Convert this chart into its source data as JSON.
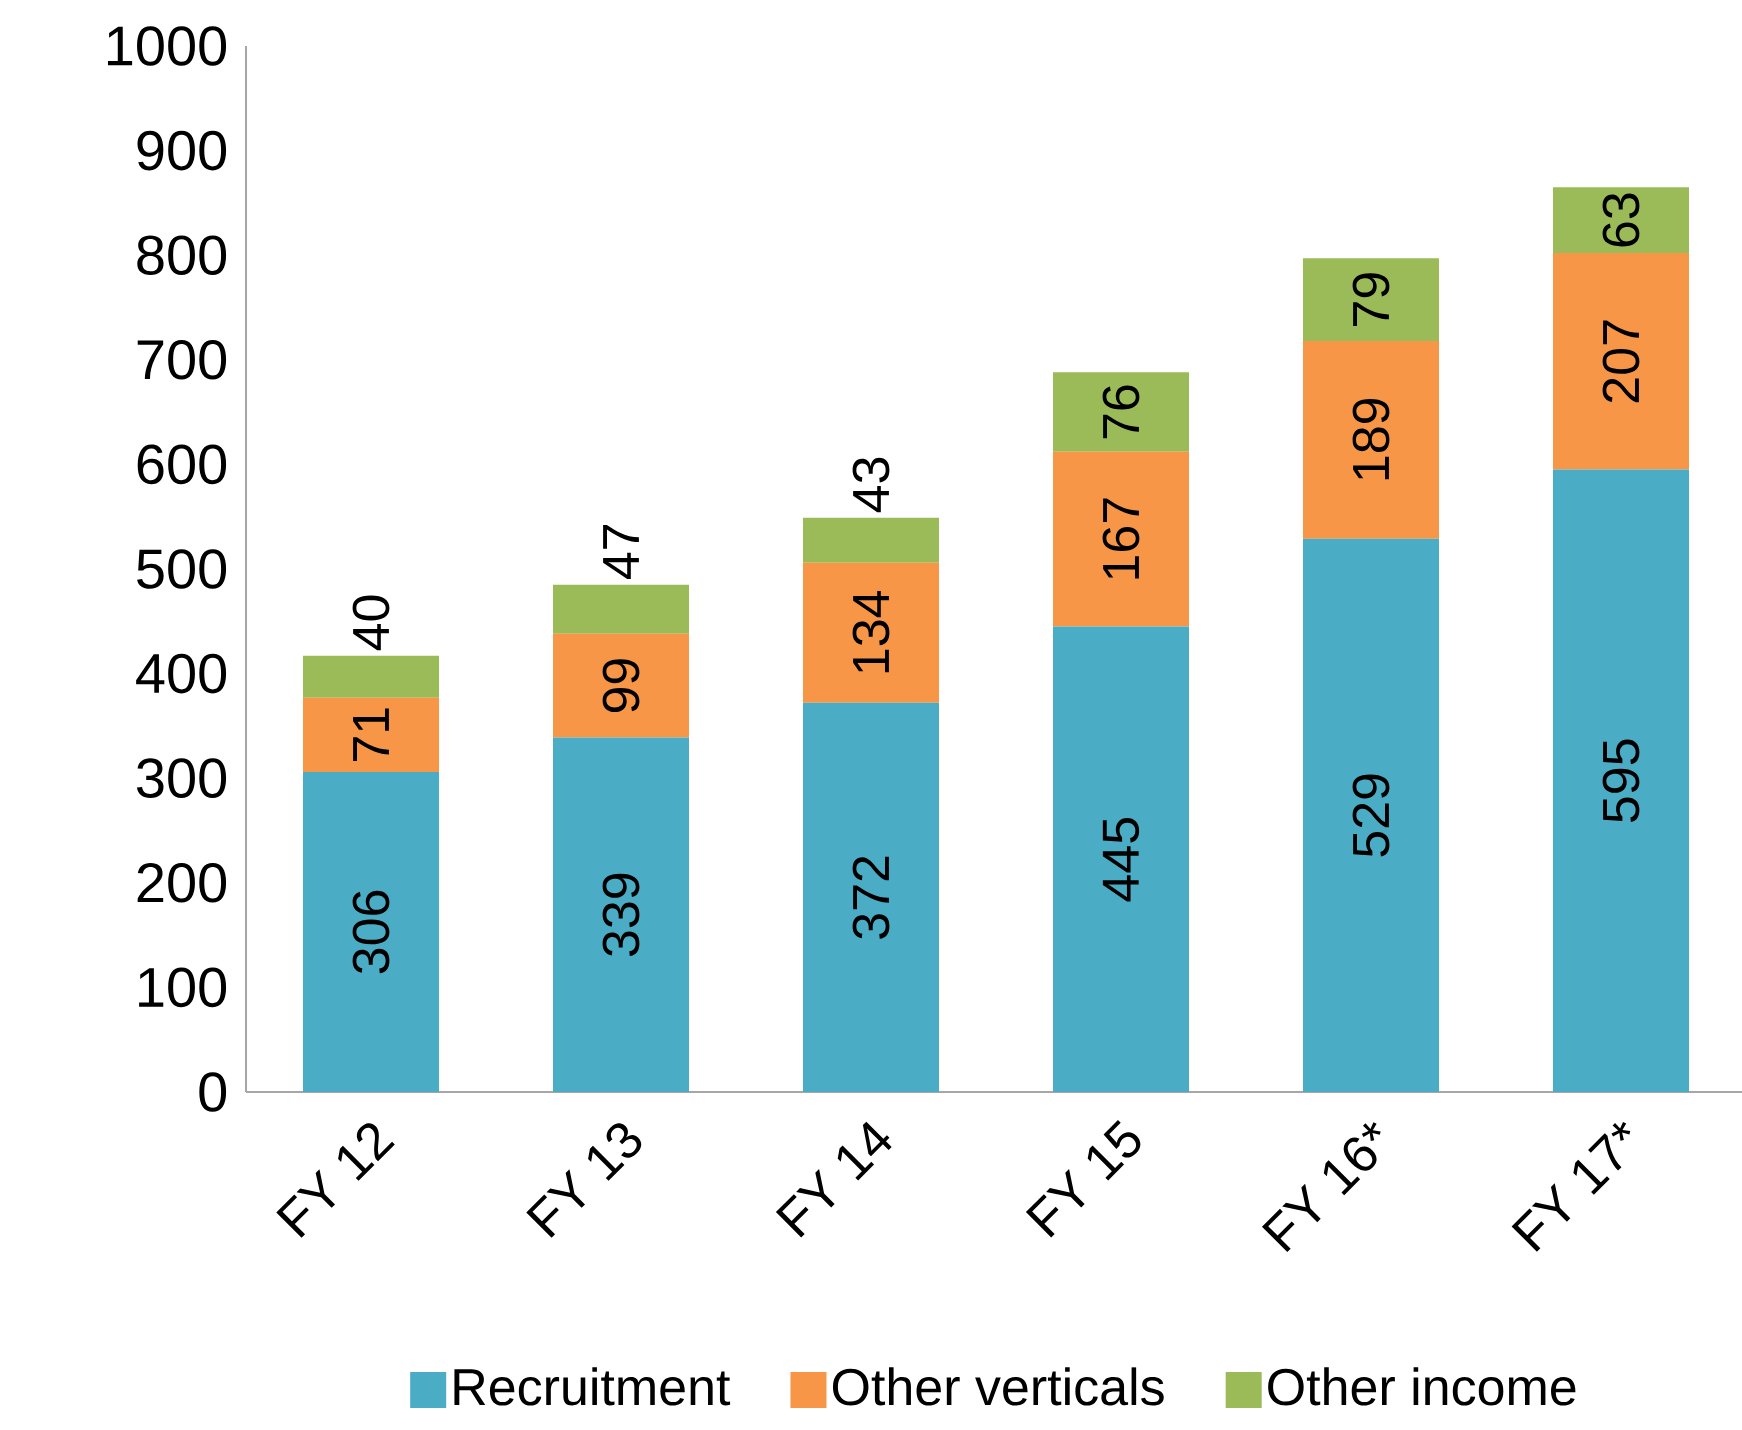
{
  "chart_data": {
    "type": "bar",
    "stacked": true,
    "categories": [
      "FY 12",
      "FY 13",
      "FY 14",
      "FY 15",
      "FY 16*",
      "FY 17*"
    ],
    "series": [
      {
        "name": "Recruitment",
        "color": "#4bacc6",
        "values": [
          306,
          339,
          372,
          445,
          529,
          595
        ]
      },
      {
        "name": "Other verticals",
        "color": "#f79646",
        "values": [
          71,
          99,
          134,
          167,
          189,
          207
        ]
      },
      {
        "name": "Other income",
        "color": "#9bbb59",
        "values": [
          40,
          47,
          43,
          76,
          79,
          63
        ]
      }
    ],
    "ylim": [
      0,
      1000
    ],
    "yticks": [
      0,
      100,
      200,
      300,
      400,
      500,
      600,
      700,
      800,
      900,
      1000
    ],
    "data_labels": true,
    "legend": "bottom"
  }
}
